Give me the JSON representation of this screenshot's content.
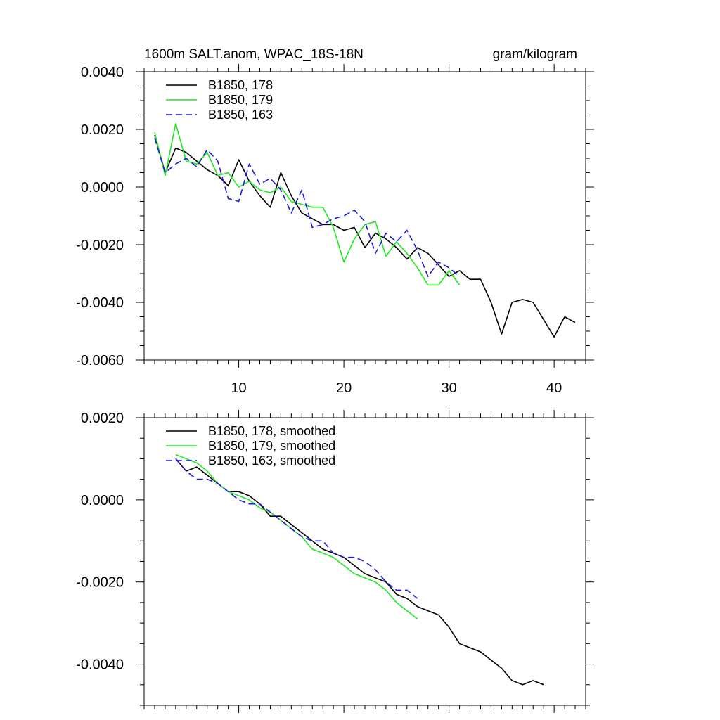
{
  "chart_data": [
    {
      "type": "line",
      "title": "1600m SALT.anom, WPAC_18S-18N",
      "units": "gram/kilogram",
      "xlim": [
        1,
        43
      ],
      "ylim": [
        -0.006,
        0.004
      ],
      "xticks": [
        10,
        20,
        30,
        40
      ],
      "xtick_labels": [
        "10",
        "20",
        "30",
        "40"
      ],
      "yticks": [
        0.004,
        0.002,
        0.0,
        -0.002,
        -0.004,
        -0.006
      ],
      "ytick_labels": [
        "0.0040",
        "0.0020",
        "0.0000",
        "-0.0020",
        "-0.0040",
        "-0.0060"
      ],
      "series": [
        {
          "name": "B1850, 178",
          "color": "#000000",
          "dash": "solid",
          "x": [
            2,
            3,
            4,
            5,
            6,
            7,
            8,
            9,
            10,
            11,
            12,
            13,
            14,
            15,
            16,
            17,
            18,
            19,
            20,
            21,
            22,
            23,
            24,
            25,
            26,
            27,
            28,
            29,
            30,
            31,
            32,
            33,
            34,
            35,
            36,
            37,
            38,
            39,
            40,
            41,
            42
          ],
          "values": [
            0.0018,
            0.0005,
            0.00135,
            0.0012,
            0.0009,
            0.0006,
            0.0004,
            5e-05,
            0.00095,
            0.0002,
            -0.0003,
            -0.0007,
            0.0005,
            -0.0003,
            -0.0009,
            -0.0011,
            -0.0013,
            -0.0013,
            -0.0015,
            -0.0014,
            -0.0021,
            -0.0016,
            -0.0018,
            -0.0021,
            -0.0025,
            -0.0021,
            -0.0023,
            -0.0027,
            -0.0031,
            -0.0029,
            -0.0032,
            -0.0032,
            -0.004,
            -0.0051,
            -0.004,
            -0.0039,
            -0.004,
            -0.0046,
            -0.0052,
            -0.0045,
            -0.0047
          ]
        },
        {
          "name": "B1850, 179",
          "color": "#22e622",
          "dash": "solid",
          "x": [
            2,
            3,
            4,
            5,
            6,
            7,
            8,
            9,
            10,
            11,
            12,
            13,
            14,
            15,
            16,
            17,
            18,
            19,
            20,
            21,
            22,
            23,
            24,
            25,
            26,
            27,
            28,
            29,
            30,
            31
          ],
          "values": [
            0.0019,
            0.0004,
            0.0022,
            0.0009,
            0.0008,
            0.0012,
            0.0004,
            0.0005,
            0.0,
            0.0002,
            -0.0001,
            -0.0002,
            0.0,
            -0.0005,
            -0.0006,
            -0.0007,
            -0.0007,
            -0.0014,
            -0.0026,
            -0.0018,
            -0.0013,
            -0.0012,
            -0.0024,
            -0.0019,
            -0.0023,
            -0.0028,
            -0.0034,
            -0.0034,
            -0.0029,
            -0.0034
          ]
        },
        {
          "name": "B1850, 163",
          "color": "#1a1adb",
          "dash": "dashed",
          "x": [
            2,
            3,
            4,
            5,
            6,
            7,
            8,
            9,
            10,
            11,
            12,
            13,
            14,
            15,
            16,
            17,
            18,
            19,
            20,
            21,
            22,
            23,
            24,
            25,
            26,
            27,
            28,
            29,
            30,
            31
          ],
          "values": [
            0.0017,
            0.0005,
            0.0008,
            0.001,
            0.0007,
            0.0013,
            0.0009,
            -0.0004,
            -0.0005,
            0.0008,
            0.0001,
            0.0003,
            -0.0001,
            -0.0009,
            -0.0001,
            -0.0014,
            -0.0013,
            -0.0011,
            -0.001,
            -0.0008,
            -0.0012,
            -0.0023,
            -0.0016,
            -0.0019,
            -0.0015,
            -0.0022,
            -0.0031,
            -0.0026,
            -0.0028,
            -0.0031
          ]
        }
      ]
    },
    {
      "type": "line",
      "title": "",
      "xlim": [
        1,
        43
      ],
      "ylim": [
        -0.005,
        0.002
      ],
      "xticks": [
        10,
        20,
        30,
        40
      ],
      "xtick_labels": [],
      "yticks": [
        0.002,
        0.0,
        -0.002,
        -0.004
      ],
      "ytick_labels": [
        "0.0020",
        "0.0000",
        "-0.0020",
        "-0.0040"
      ],
      "series": [
        {
          "name": "B1850, 178, smoothed",
          "color": "#000000",
          "dash": "solid",
          "x": [
            4,
            5,
            6,
            7,
            8,
            9,
            10,
            11,
            12,
            13,
            14,
            15,
            16,
            17,
            18,
            19,
            20,
            21,
            22,
            23,
            24,
            25,
            26,
            27,
            28,
            29,
            30,
            31,
            32,
            33,
            34,
            35,
            36,
            37,
            38,
            39
          ],
          "values": [
            0.001,
            0.0007,
            0.0008,
            0.0006,
            0.0004,
            0.0002,
            0.0002,
            0.0001,
            -0.0001,
            -0.0004,
            -0.0004,
            -0.0006,
            -0.0008,
            -0.001,
            -0.0012,
            -0.0013,
            -0.0014,
            -0.0016,
            -0.0018,
            -0.0019,
            -0.002,
            -0.0023,
            -0.0024,
            -0.0026,
            -0.0027,
            -0.0028,
            -0.0031,
            -0.0035,
            -0.0036,
            -0.0037,
            -0.0039,
            -0.0041,
            -0.0044,
            -0.0045,
            -0.0044,
            -0.0045
          ]
        },
        {
          "name": "B1850, 179, smoothed",
          "color": "#22e622",
          "dash": "solid",
          "x": [
            4,
            5,
            6,
            7,
            8,
            9,
            10,
            11,
            12,
            13,
            14,
            15,
            16,
            17,
            18,
            19,
            20,
            21,
            22,
            23,
            24,
            25,
            26,
            27
          ],
          "values": [
            0.0011,
            0.001,
            0.0009,
            0.0007,
            0.0004,
            0.0002,
            0.0001,
            0.0,
            -0.0002,
            -0.0003,
            -0.0005,
            -0.0007,
            -0.0009,
            -0.0012,
            -0.0013,
            -0.0014,
            -0.0016,
            -0.0018,
            -0.0019,
            -0.002,
            -0.0022,
            -0.0025,
            -0.0027,
            -0.0029
          ]
        },
        {
          "name": "B1850, 163, smoothed",
          "color": "#1a1adb",
          "dash": "dashed",
          "x": [
            4,
            5,
            6,
            7,
            8,
            9,
            10,
            11,
            12,
            13,
            14,
            15,
            16,
            17,
            18,
            19,
            20,
            21,
            22,
            23,
            24,
            25,
            26,
            27
          ],
          "values": [
            0.001,
            0.0007,
            0.0005,
            0.0005,
            0.0004,
            0.0002,
            0.0,
            -0.0001,
            -0.0001,
            -0.0003,
            -0.0005,
            -0.0007,
            -0.0009,
            -0.001,
            -0.001,
            -0.0013,
            -0.0014,
            -0.0014,
            -0.0015,
            -0.0017,
            -0.002,
            -0.0022,
            -0.0022,
            -0.0024
          ]
        }
      ]
    }
  ]
}
